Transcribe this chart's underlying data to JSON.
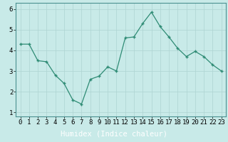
{
  "x": [
    0,
    1,
    2,
    3,
    4,
    5,
    6,
    7,
    8,
    9,
    10,
    11,
    12,
    13,
    14,
    15,
    16,
    17,
    18,
    19,
    20,
    21,
    22,
    23
  ],
  "y": [
    4.3,
    4.3,
    3.5,
    3.45,
    2.8,
    2.4,
    1.6,
    1.4,
    2.6,
    2.75,
    3.2,
    3.0,
    4.6,
    4.65,
    5.3,
    5.85,
    5.15,
    4.65,
    4.1,
    3.7,
    3.95,
    3.7,
    3.3,
    3.0
  ],
  "line_color": "#2e8b74",
  "marker_color": "#2e8b74",
  "bg_color": "#c8eae8",
  "grid_color": "#aed4d2",
  "xlabel": "Humidex (Indice chaleur)",
  "xlim": [
    -0.5,
    23.5
  ],
  "ylim": [
    0.8,
    6.3
  ],
  "yticks": [
    1,
    2,
    3,
    4,
    5,
    6
  ],
  "xticks": [
    0,
    1,
    2,
    3,
    4,
    5,
    6,
    7,
    8,
    9,
    10,
    11,
    12,
    13,
    14,
    15,
    16,
    17,
    18,
    19,
    20,
    21,
    22,
    23
  ],
  "xlabel_fontsize": 7.5,
  "tick_fontsize": 6.5,
  "bottom_bar_color": "#2e6070",
  "spine_color": "#4a9090"
}
